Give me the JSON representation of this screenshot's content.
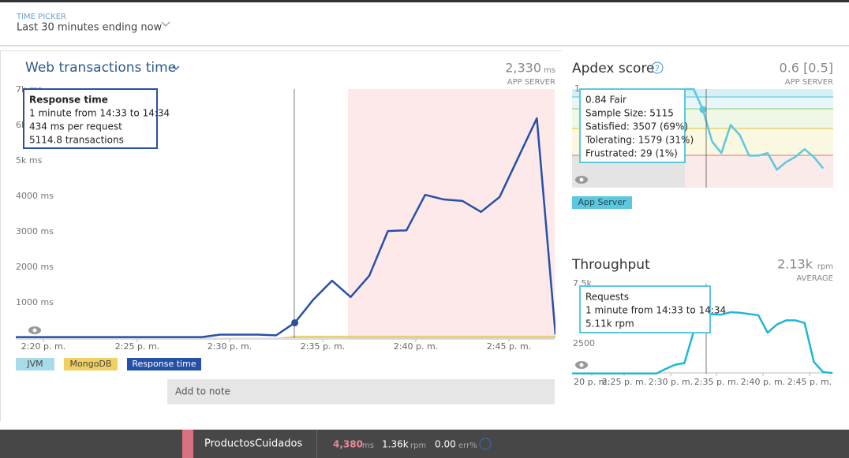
{
  "header": {
    "label": "TIME PICKER",
    "value": "Last 30 minutes ending now"
  },
  "chart_data": [
    {
      "type": "line",
      "title": "Web transactions time",
      "summary": "2,330",
      "summary_unit": "ms",
      "summary_label": "APP SERVER",
      "x_labels": [
        "2:20 p. m.",
        "2:25 p. m.",
        "2:30 p. m.",
        "2:35 p. m.",
        "2:40 p. m.",
        "2:45 p. m."
      ],
      "ylim": [
        0,
        7000
      ],
      "yticks": [
        {
          "value": 1000,
          "label": "1000 ms"
        },
        {
          "value": 2000,
          "label": "2000 ms"
        },
        {
          "value": 3000,
          "label": "3000 ms"
        },
        {
          "value": 4000,
          "label": "4000 ms"
        },
        {
          "value": 5000,
          "label": "5k ms"
        },
        {
          "value": 6000,
          "label": "6k ms"
        },
        {
          "value": 7000,
          "label": "7k ms"
        }
      ],
      "series": [
        {
          "name": "JVM",
          "color": "#a8dbe8",
          "values": [
            10,
            10,
            10,
            10,
            10,
            10,
            10,
            10,
            10,
            10,
            10,
            10,
            10,
            10,
            10,
            30,
            30,
            30,
            30,
            30,
            30,
            30,
            30,
            30,
            30,
            30,
            30,
            30,
            30,
            30
          ]
        },
        {
          "name": "MongoDB",
          "color": "#f0d060",
          "values": [
            0,
            0,
            0,
            0,
            0,
            0,
            0,
            0,
            0,
            0,
            0,
            0,
            0,
            0,
            0,
            40,
            40,
            40,
            40,
            40,
            40,
            40,
            40,
            40,
            40,
            40,
            40,
            40,
            40,
            40
          ]
        },
        {
          "name": "Response time",
          "color": "#2650a8",
          "values": [
            30,
            30,
            30,
            30,
            30,
            30,
            30,
            30,
            30,
            30,
            30,
            100,
            100,
            100,
            80,
            434,
            1090,
            1620,
            1160,
            1760,
            3020,
            3040,
            4040,
            3910,
            3870,
            3560,
            3980,
            5090,
            6200,
            100
          ]
        }
      ],
      "tooltip": [
        "Response time",
        "1 minute from 14:33 to 14:34",
        "434 ms per request",
        "5114.8 transactions"
      ],
      "add_note": "Add to note"
    },
    {
      "type": "line",
      "title": "Apdex score",
      "summary": "0.6 [0.5]",
      "summary_label": "APP SERVER",
      "ylim": [
        0.23,
        1
      ],
      "yticks": [
        1
      ],
      "series": [
        {
          "name": "App Server",
          "color": "#5bc8de",
          "values": [
            null,
            null,
            null,
            null,
            null,
            null,
            null,
            null,
            null,
            null,
            null,
            null,
            null,
            1.0,
            1.0,
            0.84,
            0.59,
            0.5,
            0.72,
            0.64,
            0.48,
            0.48,
            0.5,
            0.37,
            0.43,
            0.47,
            0.53,
            0.47,
            0.38,
            null
          ]
        }
      ],
      "tooltip": [
        "0.84 Fair",
        "Sample Size: 5115",
        "Satisfied: 3507 (69%)",
        "Tolerating: 1579 (31%)",
        "Frustrated: 29 (1%)"
      ]
    },
    {
      "type": "line",
      "title": "Throughput",
      "summary": "2.13k",
      "summary_unit": "rpm",
      "summary_label": "AVERAGE",
      "x_labels": [
        "20 p. m.",
        "2:25 p. m.",
        "2:30 p. m.",
        "2:35 p. m.",
        "2:40 p. m.",
        "2:45 p. m."
      ],
      "ylim": [
        0,
        7500
      ],
      "yticks": [
        2500,
        {
          "value": 7500,
          "label": "7.5k"
        }
      ],
      "series": [
        {
          "color": "#1fb5d6",
          "values": [
            20,
            20,
            20,
            20,
            20,
            20,
            20,
            20,
            20,
            20,
            20,
            400,
            750,
            880,
            3500,
            5110,
            4950,
            4930,
            5130,
            5080,
            4980,
            4880,
            3420,
            4100,
            4450,
            4450,
            4230,
            990,
            130,
            50
          ]
        }
      ],
      "tooltip": [
        "Requests",
        "1 minute from 14:33 to 14:34",
        "5.11k rpm"
      ]
    }
  ],
  "footer": {
    "app": "ProductosCuidados",
    "response": "4,380",
    "response_unit": "ms",
    "throughput": "1.36k",
    "throughput_unit": "rpm",
    "error": "0.00",
    "error_unit": "err%"
  }
}
